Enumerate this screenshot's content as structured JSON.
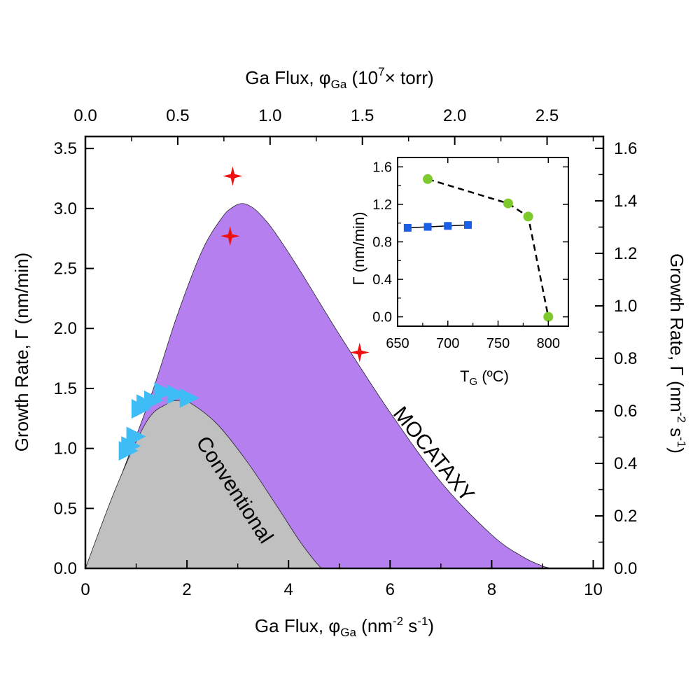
{
  "chart_data": [
    {
      "type": "area",
      "xlabel": "Ga Flux, φ_Ga (nm⁻² s⁻¹)",
      "xlabel_parts": {
        "main": "Ga Flux,  φ",
        "sub": "Ga",
        "rest": " (nm",
        "sup": "-2",
        "rest2": " s",
        "sup2": "-1",
        "end": ")"
      },
      "ylabel": "Growth Rate,  Γ (nm/min)",
      "x2label": "Ga Flux, φ_Ga (10⁷× torr)",
      "x2label_parts": {
        "main": "Ga Flux,  φ",
        "sub": "Ga",
        "rest": " (10",
        "sup": "7",
        "end": "× torr)"
      },
      "y2label": "Growth Rate,  Γ (nm⁻² s⁻¹)",
      "y2label_parts": {
        "main": "Growth Rate,  Γ (nm",
        "sup": "-2",
        "rest": " s",
        "sup2": "-1",
        "end": ")"
      },
      "xlim": [
        0,
        10.2
      ],
      "ylim": [
        0,
        3.6
      ],
      "x2lim": [
        0,
        2.805
      ],
      "y2lim": [
        0,
        1.645
      ],
      "xticks": [
        "0",
        "2",
        "4",
        "6",
        "8",
        "10"
      ],
      "yticks": [
        "0.0",
        "0.5",
        "1.0",
        "1.5",
        "2.0",
        "2.5",
        "3.0",
        "3.5"
      ],
      "x2ticks": [
        "0.0",
        "0.5",
        "1.0",
        "1.5",
        "2.0",
        "2.5"
      ],
      "y2ticks": [
        "0.0",
        "0.2",
        "0.4",
        "0.6",
        "0.8",
        "1.0",
        "1.2",
        "1.4",
        "1.6"
      ],
      "regions": [
        {
          "name": "MOCATAXY",
          "color": "#b57ff0",
          "peak_x": 3.05,
          "peak_y": 3.04,
          "x": [
            0,
            1.2,
            1.8,
            2.3,
            2.7,
            2.9,
            3.05,
            3.2,
            3.4,
            3.7,
            4.2,
            5.0,
            6.0,
            7.0,
            8.0,
            8.6,
            9.0,
            9.2
          ],
          "y": [
            0,
            1.33,
            2.1,
            2.65,
            2.93,
            3.01,
            3.04,
            3.03,
            2.97,
            2.82,
            2.5,
            1.95,
            1.3,
            0.72,
            0.28,
            0.1,
            0.02,
            0
          ]
        },
        {
          "name": "Conventional",
          "color": "#c0c0c0",
          "peak_x": 1.85,
          "peak_y": 1.4,
          "x": [
            0,
            0.6,
            1.2,
            1.6,
            1.85,
            2.1,
            2.6,
            3.2,
            3.8,
            4.2,
            4.5,
            4.65
          ],
          "y": [
            0,
            0.67,
            1.22,
            1.37,
            1.4,
            1.37,
            1.2,
            0.88,
            0.5,
            0.24,
            0.07,
            0
          ]
        }
      ],
      "series": [
        {
          "marker": "star",
          "color": "#ee1111",
          "points": [
            [
              2.9,
              3.27
            ],
            [
              2.85,
              2.77
            ],
            [
              5.4,
              1.8
            ]
          ]
        },
        {
          "marker": "triangle-right",
          "color": "#3dbcf5",
          "points": [
            [
              0.85,
              0.98
            ],
            [
              0.9,
              1.02
            ],
            [
              1.0,
              1.1
            ],
            [
              1.1,
              1.33
            ],
            [
              1.2,
              1.37
            ],
            [
              1.35,
              1.4
            ],
            [
              1.55,
              1.47
            ],
            [
              1.8,
              1.45
            ],
            [
              2.05,
              1.42
            ]
          ]
        }
      ]
    },
    {
      "type": "line",
      "inset": true,
      "xlabel_parts": {
        "main": "T",
        "sub": "G",
        "rest": " (ºC)"
      },
      "ylabel": "Γ (nm/min)",
      "xlim": [
        650,
        820
      ],
      "ylim": [
        -0.1,
        1.7
      ],
      "xticks": [
        "650",
        "700",
        "750",
        "800"
      ],
      "yticks": [
        "0.0",
        "0.4",
        "0.8",
        "1.2",
        "1.6"
      ],
      "series": [
        {
          "marker": "square",
          "color": "#1a5fe6",
          "line": "solid",
          "x": [
            660,
            680,
            700,
            720
          ],
          "y": [
            0.95,
            0.96,
            0.97,
            0.98
          ]
        },
        {
          "marker": "circle",
          "color": "#7ec92b",
          "line": "dashed",
          "x": [
            680,
            760,
            780,
            800
          ],
          "y": [
            1.47,
            1.21,
            1.07,
            0.0
          ]
        }
      ]
    }
  ],
  "labels": {
    "mocataxy": "MOCATAXY",
    "conventional": "Conventional"
  }
}
